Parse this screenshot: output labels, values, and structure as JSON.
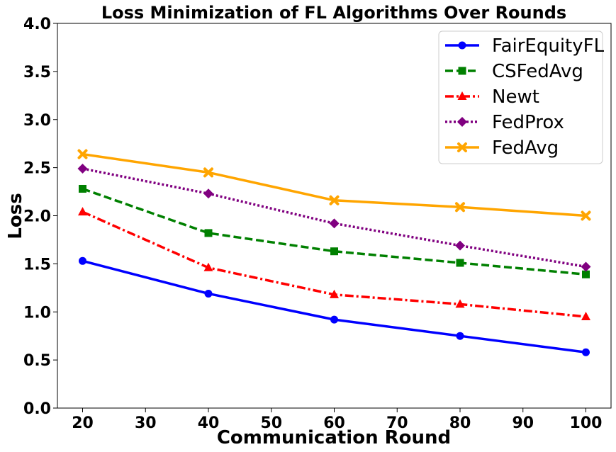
{
  "chart_data": {
    "type": "line",
    "title": "Loss Minimization of FL Algorithms Over Rounds",
    "xlabel": "Communication Round",
    "ylabel": "Loss",
    "x": [
      20,
      40,
      60,
      80,
      100
    ],
    "xlim": [
      16,
      104
    ],
    "ylim": [
      0,
      4
    ],
    "xticks": [
      "20",
      "30",
      "40",
      "50",
      "60",
      "70",
      "80",
      "90",
      "100"
    ],
    "yticks": [
      "0.0",
      "0.5",
      "1.0",
      "1.5",
      "2.0",
      "2.5",
      "3.0",
      "3.5",
      "4.0"
    ],
    "grid": false,
    "legend_position": "top-right",
    "series": [
      {
        "name": "FairEquityFL",
        "values": [
          1.53,
          1.19,
          0.92,
          0.75,
          0.58
        ],
        "color": "#0000ff",
        "dash": "solid",
        "marker": "circle"
      },
      {
        "name": "CSFedAvg",
        "values": [
          2.28,
          1.82,
          1.63,
          1.51,
          1.39
        ],
        "color": "#008000",
        "dash": "dashed",
        "marker": "square"
      },
      {
        "name": "Newt",
        "values": [
          2.04,
          1.46,
          1.18,
          1.08,
          0.95
        ],
        "color": "#ff0000",
        "dash": "dashdot",
        "marker": "triangle"
      },
      {
        "name": "FedProx",
        "values": [
          2.49,
          2.23,
          1.92,
          1.69,
          1.47
        ],
        "color": "#800080",
        "dash": "dotted",
        "marker": "diamond"
      },
      {
        "name": "FedAvg",
        "values": [
          2.64,
          2.45,
          2.16,
          2.09,
          2.0
        ],
        "color": "#ffa500",
        "dash": "solid",
        "marker": "x"
      }
    ]
  }
}
